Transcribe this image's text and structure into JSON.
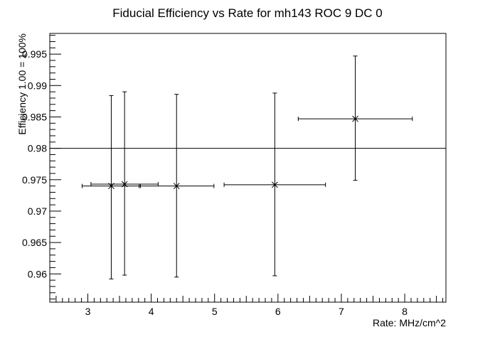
{
  "chart_data": {
    "type": "scatter",
    "title": "Fiducial Efficiency vs Rate for mh143 ROC 9 DC 0",
    "xlabel": "Rate: MHz/cm^2",
    "ylabel": "Efficiency 1.00 = 100%",
    "xlim": [
      2.4,
      8.65
    ],
    "ylim": [
      0.9555,
      0.9983
    ],
    "x_ticks": [
      3,
      4,
      5,
      6,
      7,
      8
    ],
    "x_tick_labels": [
      "3",
      "4",
      "5",
      "6",
      "7",
      "8"
    ],
    "y_ticks": [
      0.96,
      0.965,
      0.97,
      0.975,
      0.98,
      0.985,
      0.99,
      0.995
    ],
    "y_tick_labels": [
      "0.96",
      "0.965",
      "0.97",
      "0.975",
      "0.98",
      "0.985",
      "0.99",
      "0.995"
    ],
    "reference_line": 0.98,
    "grid": false,
    "marker": "x",
    "points": [
      {
        "x": 3.37,
        "y": 0.974,
        "xerr_low": 0.46,
        "xerr_high": 0.46,
        "yerr_low": 0.0148,
        "yerr_high": 0.0144
      },
      {
        "x": 3.58,
        "y": 0.9743,
        "xerr_low": 0.53,
        "xerr_high": 0.53,
        "yerr_low": 0.0145,
        "yerr_high": 0.0147
      },
      {
        "x": 4.4,
        "y": 0.974,
        "xerr_low": 0.59,
        "xerr_high": 0.59,
        "yerr_low": 0.0145,
        "yerr_high": 0.0146
      },
      {
        "x": 5.95,
        "y": 0.9742,
        "xerr_low": 0.8,
        "xerr_high": 0.8,
        "yerr_low": 0.0145,
        "yerr_high": 0.0146
      },
      {
        "x": 7.22,
        "y": 0.9847,
        "xerr_low": 0.9,
        "xerr_high": 0.9,
        "yerr_low": 0.0098,
        "yerr_high": 0.01
      }
    ]
  }
}
